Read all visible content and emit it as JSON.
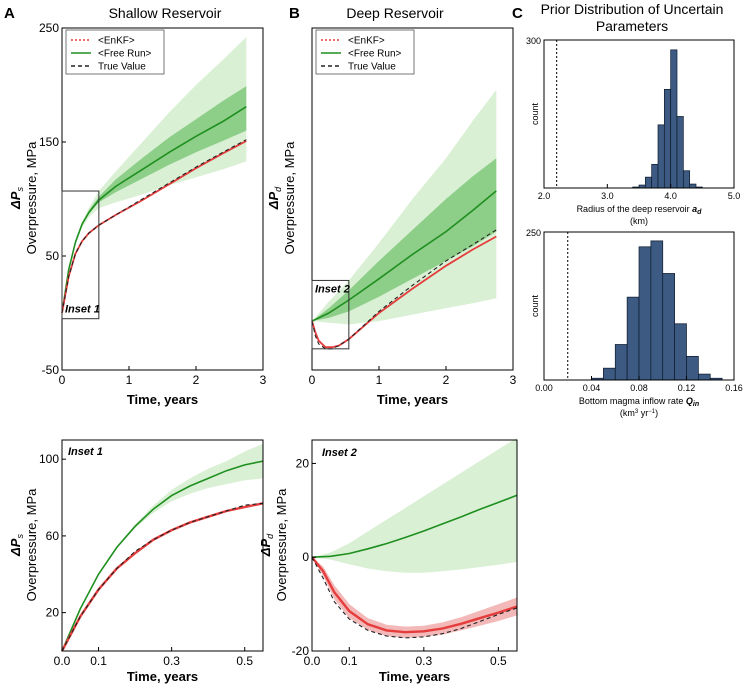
{
  "figure": {
    "panel_letters": [
      "A",
      "B",
      "C"
    ],
    "c_title_lines": [
      "Prior Distribution of Uncertain",
      "Parameters"
    ]
  },
  "chart_data": [
    {
      "id": "A",
      "type": "line",
      "title": "Shallow Reservoir",
      "xlabel": "Time, years",
      "ylabel_symbol": "ΔP",
      "ylabel_sub": "s",
      "ylabel": "Overpressure, MPa",
      "xlim": [
        0,
        3
      ],
      "ylim": [
        -50,
        250
      ],
      "xticks": [
        0,
        1,
        2,
        3
      ],
      "xtick_labels": [
        "0",
        "1",
        "2",
        "3"
      ],
      "yticks": [
        -50,
        50,
        150,
        250
      ],
      "ytick_labels": [
        "-50",
        "50",
        "150",
        "250"
      ],
      "legend": [
        "<EnKF>",
        "<Free Run>",
        "True Value"
      ],
      "inset_box": {
        "label": "Inset 1",
        "x": [
          0,
          0.55
        ],
        "y": [
          -5,
          107
        ]
      },
      "series": [
        {
          "name": "<Free Run>",
          "x": [
            0,
            0.1,
            0.2,
            0.3,
            0.4,
            0.55,
            0.8,
            1.2,
            1.6,
            2.0,
            2.4,
            2.75
          ],
          "values": [
            0,
            38,
            62,
            78,
            88,
            99,
            111,
            126,
            141,
            155,
            168,
            181
          ],
          "band_outer": [
            [
              0,
              0
            ],
            [
              37,
              39
            ],
            [
              60,
              64
            ],
            [
              75,
              80
            ],
            [
              84,
              92
            ],
            [
              92,
              107
            ],
            [
              97,
              124
            ],
            [
              104,
              150
            ],
            [
              112,
              176
            ],
            [
              119,
              200
            ],
            [
              126,
              222
            ],
            [
              133,
              242
            ]
          ],
          "band_inner": [
            [
              0,
              0
            ],
            [
              37,
              39
            ],
            [
              61,
              63
            ],
            [
              77,
              79
            ],
            [
              87,
              90
            ],
            [
              97,
              102
            ],
            [
              106,
              117
            ],
            [
              118,
              136
            ],
            [
              130,
              154
            ],
            [
              141,
              170
            ],
            [
              151,
              186
            ],
            [
              160,
              199
            ]
          ]
        },
        {
          "name": "<EnKF>",
          "x": [
            0,
            0.1,
            0.2,
            0.3,
            0.4,
            0.55,
            0.8,
            1.2,
            1.6,
            2.0,
            2.4,
            2.75
          ],
          "values": [
            0,
            32,
            52,
            63,
            70,
            77,
            86,
            99,
            113,
            127,
            140,
            151
          ]
        },
        {
          "name": "True Value",
          "x": [
            0,
            0.1,
            0.2,
            0.3,
            0.4,
            0.55,
            0.8,
            1.2,
            1.6,
            2.0,
            2.4,
            2.75
          ],
          "values": [
            0,
            32,
            52,
            63,
            70,
            77,
            86,
            100,
            114,
            128,
            141,
            152
          ]
        }
      ]
    },
    {
      "id": "B",
      "type": "line",
      "title": "Deep Reservoir",
      "xlabel": "Time, years",
      "ylabel_symbol": "ΔP",
      "ylabel_sub": "d",
      "ylabel": "Overpressure, MPa",
      "xlim": [
        0,
        3
      ],
      "ylim": [
        -30,
        180
      ],
      "xticks": [
        0,
        1,
        2,
        3
      ],
      "xtick_labels": [
        "0",
        "1",
        "2",
        "3"
      ],
      "legend": [
        "<EnKF>",
        "<Free Run>",
        "True Value"
      ],
      "inset_box": {
        "label": "Inset 2",
        "x": [
          0,
          0.55
        ],
        "y": [
          -17,
          25
        ]
      },
      "series": [
        {
          "name": "<Free Run>",
          "x": [
            0,
            0.25,
            0.55,
            1.0,
            1.5,
            2.0,
            2.4,
            2.75
          ],
          "values": [
            0,
            5,
            13,
            26,
            41,
            55,
            68,
            80
          ],
          "band_outer": [
            [
              0,
              0
            ],
            [
              -1,
              12
            ],
            [
              -2,
              25
            ],
            [
              0,
              48
            ],
            [
              4,
              75
            ],
            [
              8,
              100
            ],
            [
              11,
              123
            ],
            [
              14,
              142
            ]
          ],
          "band_inner": [
            [
              0,
              0
            ],
            [
              2,
              8
            ],
            [
              6,
              19
            ],
            [
              15,
              37
            ],
            [
              26,
              56
            ],
            [
              37,
              75
            ],
            [
              46,
              89
            ],
            [
              55,
              100
            ]
          ]
        },
        {
          "name": "<EnKF>",
          "x": [
            0,
            0.05,
            0.1,
            0.2,
            0.3,
            0.4,
            0.55,
            1.0,
            1.5,
            2.0,
            2.4,
            2.75
          ],
          "values": [
            0,
            -7,
            -12,
            -16,
            -16,
            -15,
            -11,
            5,
            20,
            34,
            44,
            52
          ]
        },
        {
          "name": "True Value",
          "x": [
            0,
            0.05,
            0.1,
            0.2,
            0.3,
            0.4,
            0.55,
            1.0,
            1.5,
            2.0,
            2.4,
            2.75
          ],
          "values": [
            0,
            -9,
            -14,
            -17,
            -17,
            -15,
            -11,
            6,
            22,
            37,
            47,
            56
          ]
        }
      ]
    },
    {
      "id": "C1",
      "type": "bar",
      "subtype": "histogram",
      "xlabel": "Radius of the deep reservoir",
      "xlabel_symbol": "a",
      "xlabel_sub": "d",
      "xlabel_unit": "(km)",
      "ylabel": "count",
      "xlim": [
        2.0,
        5.0
      ],
      "ylim": [
        0,
        300
      ],
      "xticks": [
        2.0,
        3.0,
        4.0,
        5.0
      ],
      "xtick_labels": [
        "2.0",
        "3.0",
        "4.0",
        "5.0"
      ],
      "yticks": [
        300
      ],
      "ytick_labels": [
        "300"
      ],
      "prior_line": 2.2,
      "bin_width": 0.1,
      "categories": [
        3.4,
        3.5,
        3.6,
        3.7,
        3.8,
        3.9,
        4.0,
        4.1,
        4.2,
        4.3,
        4.4
      ],
      "values": [
        2,
        6,
        22,
        48,
        128,
        200,
        280,
        145,
        35,
        8,
        2
      ]
    },
    {
      "id": "C2",
      "type": "bar",
      "subtype": "histogram",
      "xlabel": "Bottom magma inflow rate",
      "xlabel_symbol": "Q",
      "xlabel_sub": "in",
      "xlabel_unit_a": "(km",
      "xlabel_unit_b": "3",
      "xlabel_unit_c": " yr",
      "xlabel_unit_d": "−1",
      "xlabel_unit_e": ")",
      "ylabel": "count",
      "xlim": [
        0.0,
        0.16
      ],
      "ylim": [
        0,
        250
      ],
      "xticks": [
        0.0,
        0.04,
        0.08,
        0.12,
        0.16
      ],
      "xtick_labels": [
        "0.00",
        "0.04",
        "0.08",
        "0.12",
        "0.16"
      ],
      "yticks": [
        250
      ],
      "ytick_labels": [
        "250"
      ],
      "prior_line": 0.02,
      "bin_width": 0.01,
      "categories": [
        0.04,
        0.05,
        0.06,
        0.07,
        0.08,
        0.09,
        0.1,
        0.11,
        0.12,
        0.13,
        0.14
      ],
      "values": [
        3,
        20,
        60,
        140,
        225,
        235,
        180,
        95,
        40,
        10,
        3
      ]
    },
    {
      "id": "Inset1",
      "type": "line",
      "title": "Inset 1",
      "xlabel": "Time, years",
      "ylabel_symbol": "ΔP",
      "ylabel_sub": "s",
      "ylabel": "Overpressure, MPa",
      "xlim": [
        0,
        0.55
      ],
      "ylim": [
        0,
        110
      ],
      "xticks": [
        0.0,
        0.1,
        0.3,
        0.5
      ],
      "xtick_labels": [
        "0.0",
        "0.1",
        "0.3",
        "0.5"
      ],
      "yticks": [
        20,
        60,
        100
      ],
      "ytick_labels": [
        "20",
        "60",
        "100"
      ],
      "series": [
        {
          "name": "<Free Run>",
          "x": [
            0,
            0.05,
            0.1,
            0.15,
            0.2,
            0.25,
            0.3,
            0.35,
            0.4,
            0.45,
            0.5,
            0.55
          ],
          "values": [
            0,
            22,
            40,
            54,
            65,
            74,
            81,
            86,
            90,
            94,
            97,
            99
          ],
          "band_outer": [
            [
              0,
              0
            ],
            [
              22,
              22
            ],
            [
              40,
              40
            ],
            [
              54,
              54
            ],
            [
              64,
              66
            ],
            [
              72,
              76
            ],
            [
              78,
              84
            ],
            [
              82,
              90
            ],
            [
              85,
              95
            ],
            [
              87,
              99
            ],
            [
              89,
              104
            ],
            [
              90,
              108
            ]
          ]
        },
        {
          "name": "<EnKF>",
          "x": [
            0,
            0.05,
            0.1,
            0.15,
            0.2,
            0.25,
            0.3,
            0.35,
            0.4,
            0.45,
            0.5,
            0.55
          ],
          "values": [
            0,
            18,
            32,
            43,
            51,
            58,
            63,
            67,
            70,
            73,
            75,
            77
          ]
        },
        {
          "name": "True Value",
          "x": [
            0,
            0.05,
            0.1,
            0.15,
            0.2,
            0.25,
            0.3,
            0.35,
            0.4,
            0.45,
            0.5,
            0.55
          ],
          "values": [
            0,
            18,
            32,
            43,
            52,
            58,
            63,
            67,
            70,
            73,
            76,
            77
          ]
        }
      ]
    },
    {
      "id": "Inset2",
      "type": "line",
      "title": "Inset 2",
      "xlabel": "Time, years",
      "ylabel_symbol": "ΔP",
      "ylabel_sub": "d",
      "ylabel": "Overpressure, MPa",
      "xlim": [
        0,
        0.55
      ],
      "ylim": [
        -20,
        25
      ],
      "xticks": [
        0.0,
        0.1,
        0.3,
        0.5
      ],
      "xtick_labels": [
        "0.0",
        "0.1",
        "0.3",
        "0.5"
      ],
      "yticks": [
        -20,
        0,
        20
      ],
      "ytick_labels": [
        "-20",
        "0",
        "20"
      ],
      "series": [
        {
          "name": "<Free Run>",
          "x": [
            0,
            0.05,
            0.1,
            0.15,
            0.2,
            0.25,
            0.3,
            0.35,
            0.4,
            0.45,
            0.5,
            0.55
          ],
          "values": [
            0,
            0.2,
            0.8,
            1.8,
            2.9,
            4.2,
            5.6,
            7.1,
            8.6,
            10.2,
            11.7,
            13.2
          ],
          "band_outer": [
            [
              0,
              0
            ],
            [
              -0.5,
              1
            ],
            [
              -1.5,
              3
            ],
            [
              -2.4,
              5.5
            ],
            [
              -3,
              8
            ],
            [
              -3.3,
              10.5
            ],
            [
              -3.3,
              13
            ],
            [
              -3,
              15.5
            ],
            [
              -2.6,
              18
            ],
            [
              -2.1,
              20.5
            ],
            [
              -1.6,
              23
            ],
            [
              -1,
              25.5
            ]
          ]
        },
        {
          "name": "<EnKF>",
          "x": [
            0,
            0.03,
            0.06,
            0.1,
            0.15,
            0.2,
            0.25,
            0.3,
            0.35,
            0.4,
            0.45,
            0.5,
            0.55
          ],
          "values": [
            0,
            -3,
            -7.5,
            -11.5,
            -14.3,
            -15.6,
            -16,
            -15.8,
            -15.2,
            -14.2,
            -13,
            -11.8,
            -10.5
          ],
          "band": [
            [
              0,
              0
            ],
            [
              -4,
              -2
            ],
            [
              -9,
              -6
            ],
            [
              -13,
              -10
            ],
            [
              -15.5,
              -13
            ],
            [
              -16.8,
              -14.4
            ],
            [
              -17.2,
              -14.8
            ],
            [
              -17,
              -14.6
            ],
            [
              -16.5,
              -13.9
            ],
            [
              -15.6,
              -12.8
            ],
            [
              -14.6,
              -11.4
            ],
            [
              -13.6,
              -10
            ],
            [
              -12.4,
              -8.6
            ]
          ]
        },
        {
          "name": "True Value",
          "x": [
            0,
            0.03,
            0.06,
            0.1,
            0.15,
            0.2,
            0.25,
            0.3,
            0.35,
            0.4,
            0.45,
            0.5,
            0.55
          ],
          "values": [
            0,
            -4.5,
            -9.5,
            -13.2,
            -15.6,
            -16.8,
            -17.2,
            -17,
            -16.3,
            -15.2,
            -13.7,
            -12.2,
            -10.8
          ]
        }
      ]
    }
  ]
}
